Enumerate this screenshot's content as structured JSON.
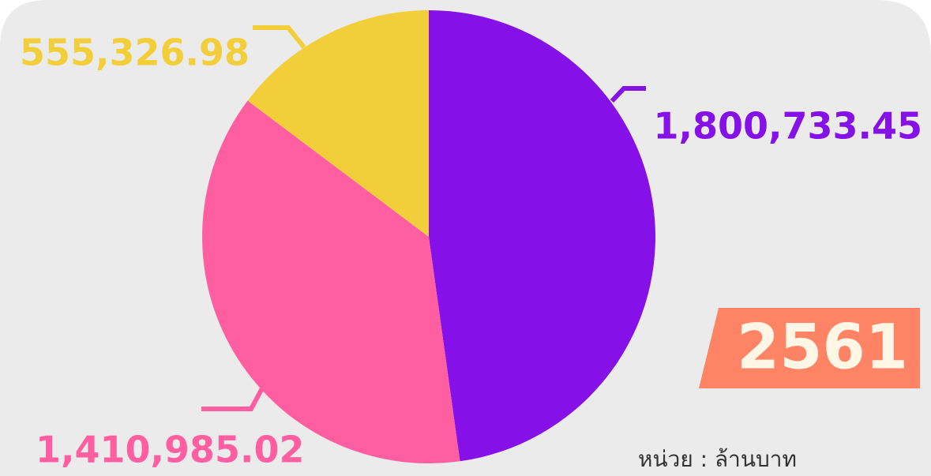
{
  "chart_data": {
    "type": "pie",
    "values": [
      1800733.45,
      1410985.02,
      555326.98
    ],
    "value_labels": [
      "1,800,733.45",
      "1,410,985.02",
      "555,326.98"
    ],
    "colors": [
      "#8510e8",
      "#ff5fa0",
      "#f2cf3a"
    ],
    "annotations": [
      "2561",
      "หน่วย : ล้านบาท"
    ]
  }
}
